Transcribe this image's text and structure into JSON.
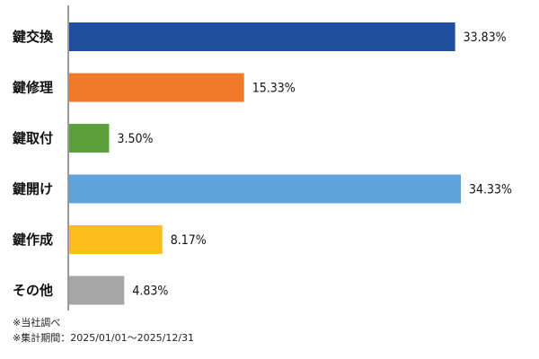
{
  "chart_data": {
    "type": "bar",
    "orientation": "horizontal",
    "categories": [
      "鍵交換",
      "鍵修理",
      "鍵取付",
      "鍵開け",
      "鍵作成",
      "その他"
    ],
    "values": [
      33.83,
      15.33,
      3.5,
      34.33,
      8.17,
      4.83
    ],
    "value_labels": [
      "33.83%",
      "15.33%",
      "3.50%",
      "34.33%",
      "8.17%",
      "4.83%"
    ],
    "colors": [
      "#1f4e9c",
      "#f07a2a",
      "#5aa13c",
      "#5fa3dc",
      "#fdbd1c",
      "#a6a6a6"
    ],
    "xlim": [
      0,
      40
    ],
    "grid": false,
    "legend": "none"
  },
  "notes": {
    "source": "※当社調べ",
    "period": "※集計期間：2025/01/01～2025/12/31"
  }
}
